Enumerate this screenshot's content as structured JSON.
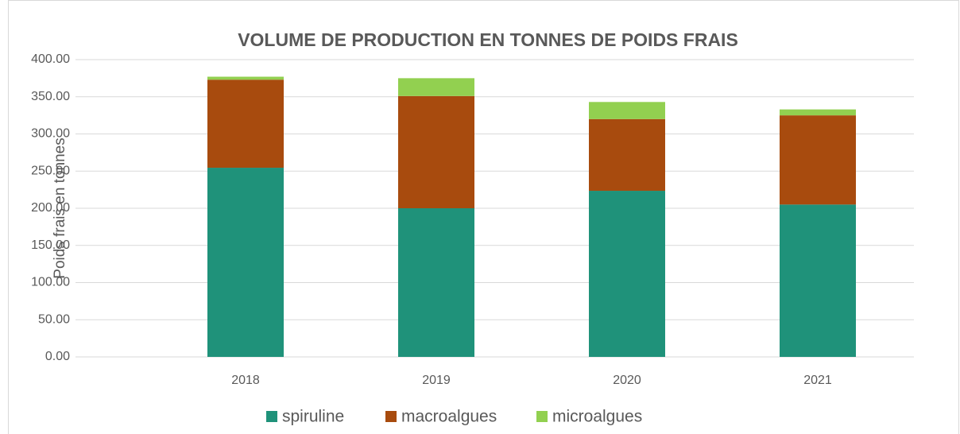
{
  "chart_data": {
    "type": "stacked_bar",
    "title": "VOLUME DE PRODUCTION EN TONNES DE POIDS FRAIS",
    "y_label": "Poids frais en tonnes",
    "categories": [
      "2018",
      "2019",
      "2020",
      "2021"
    ],
    "series": [
      {
        "name": "spiruline",
        "color": "#1f927a",
        "values": [
          254.5,
          200,
          223.5,
          205
        ]
      },
      {
        "name": "macroalgues",
        "color": "#a84b0e",
        "values": [
          118.5,
          151,
          96.5,
          120
        ]
      },
      {
        "name": "microalgues",
        "color": "#92d050",
        "values": [
          4,
          24,
          23,
          8
        ]
      }
    ],
    "ylim": [
      0,
      400
    ],
    "yticks": [
      {
        "value": 0,
        "label": "0.00"
      },
      {
        "value": 50,
        "label": "50.00"
      },
      {
        "value": 100,
        "label": "100.00"
      },
      {
        "value": 150,
        "label": "150.00"
      },
      {
        "value": 200,
        "label": "200.00"
      },
      {
        "value": 250,
        "label": "250.00"
      },
      {
        "value": 300,
        "label": "300.00"
      },
      {
        "value": 350,
        "label": "350.00"
      },
      {
        "value": 400,
        "label": "400.00"
      }
    ],
    "grid": true,
    "legend": "bottom"
  }
}
